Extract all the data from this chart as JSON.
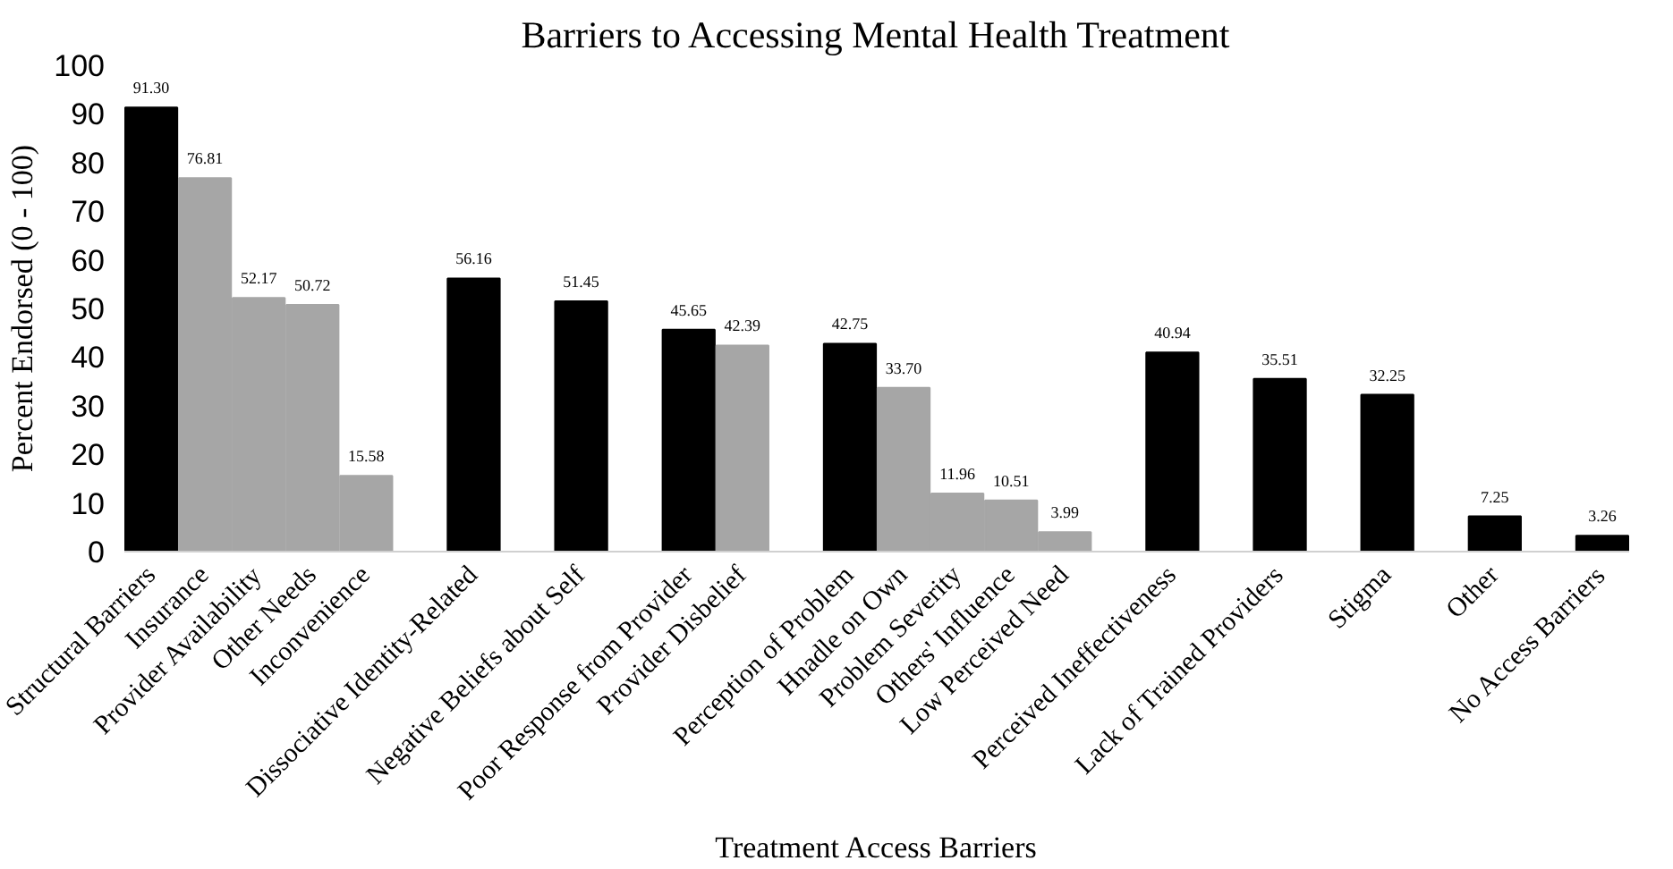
{
  "chart_data": {
    "type": "bar",
    "title": "Barriers to Accessing Mental Health Treatment",
    "xlabel": "Treatment Access Barriers",
    "ylabel": "Percent Endorsed (0 - 100)",
    "categories": [
      "Structural Barriers",
      "Insurance",
      "Provider Availability",
      "Other Needs",
      "Inconvenience",
      null,
      "Dissociative Identity-Related",
      null,
      "Negative Beliefs about Self",
      null,
      "Poor Response from Provider",
      "Provider Disbelief",
      null,
      "Perception of Problem",
      "Hnadle on Own",
      "Problem Severity",
      "Others' Influence",
      "Low Perceived Need",
      null,
      "Perceived Ineffectiveness",
      null,
      "Lack of Trained Providers",
      null,
      "Stigma",
      null,
      "Other",
      null,
      "No Access Barriers"
    ],
    "values": [
      91.3,
      76.81,
      52.17,
      50.72,
      15.58,
      null,
      56.16,
      null,
      51.45,
      null,
      45.65,
      42.39,
      null,
      42.75,
      33.7,
      11.96,
      10.51,
      3.99,
      null,
      40.94,
      null,
      35.51,
      null,
      32.25,
      null,
      7.25,
      null,
      3.26
    ],
    "value_labels": [
      "91.30",
      "76.81",
      "52.17",
      "50.72",
      "15.58",
      null,
      "56.16",
      null,
      "51.45",
      null,
      "45.65",
      "42.39",
      null,
      "42.75",
      "33.70",
      "11.96",
      "10.51",
      "3.99",
      null,
      "40.94",
      null,
      "35.51",
      null,
      "32.25",
      null,
      "7.25",
      null,
      "3.26"
    ],
    "colors": [
      "#000000",
      "#a6a6a6",
      "#a6a6a6",
      "#a6a6a6",
      "#a6a6a6",
      null,
      "#000000",
      null,
      "#000000",
      null,
      "#000000",
      "#a6a6a6",
      null,
      "#000000",
      "#a6a6a6",
      "#a6a6a6",
      "#a6a6a6",
      "#a6a6a6",
      null,
      "#000000",
      null,
      "#000000",
      null,
      "#000000",
      null,
      "#000000",
      null,
      "#000000"
    ],
    "ylim": [
      0,
      100
    ],
    "yticks": [
      0,
      10,
      20,
      30,
      40,
      50,
      60,
      70,
      80,
      90,
      100
    ],
    "grid": false
  }
}
